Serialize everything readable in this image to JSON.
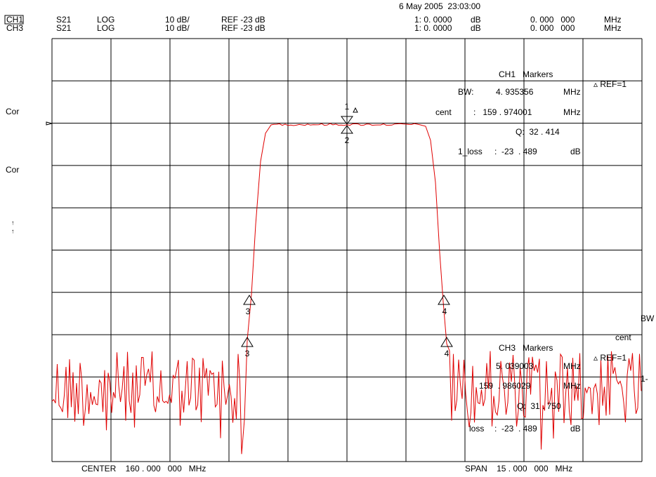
{
  "header": {
    "date": "6 May 2005  23:03:00",
    "rows": [
      [
        "CH1",
        "S21",
        "LOG",
        "10 dB/",
        "REF -23 dB",
        "1: 0. 0000",
        "dB",
        "0. 000   000",
        "MHz"
      ],
      [
        "CH3",
        "S21",
        "LOG",
        "10 dB/",
        "REF -23 dB",
        "1: 0. 0000",
        "dB",
        "0. 000   000",
        "MHz"
      ]
    ]
  },
  "left_labels": [
    "Cor",
    "Cor",
    "↑",
    "↑"
  ],
  "ch1_markers": {
    "title": "CH1   Markers",
    "ref": "▵ REF=1",
    "bw_label": "BW:",
    "bw": "4. 935356",
    "bw_unit": "MHz",
    "cent_label": "cent",
    "cent": ":   159 . 974001",
    "cent_unit": "MHz",
    "q": "Q:  32 . 414",
    "loss_label": "1_loss",
    "loss": ":  -23  . 489",
    "loss_unit": "dB"
  },
  "ch3_markers": {
    "title": "CH3   Markers",
    "ref": "▵ REF=1",
    "bw": "5. 039003",
    "bw_unit": "MHz",
    "cent": "159  . 986029",
    "cent_unit": "MHz",
    "q": "Q:  31 . 750",
    "loss_label": "loss",
    "loss": ":  -23  . 489",
    "loss_unit": "dB"
  },
  "right_labels": [
    "BW",
    "cent",
    "1-"
  ],
  "marker_numbers": [
    "1",
    "2",
    "3",
    "3",
    "4",
    "4"
  ],
  "footer": {
    "center": "CENTER    160 . 000   000   MHz",
    "span": "SPAN    15 . 000   000   MHz"
  }
}
